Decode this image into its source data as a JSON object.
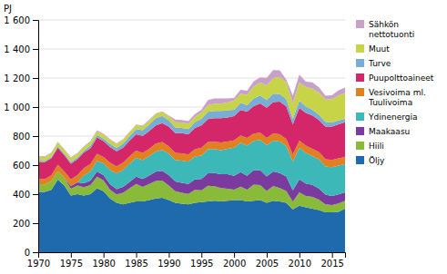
{
  "chart_data": {
    "type": "area",
    "stacked": true,
    "y_label": "PJ",
    "x": [
      1970,
      1971,
      1972,
      1973,
      1974,
      1975,
      1976,
      1977,
      1978,
      1979,
      1980,
      1981,
      1982,
      1983,
      1984,
      1985,
      1986,
      1987,
      1988,
      1989,
      1990,
      1991,
      1992,
      1993,
      1994,
      1995,
      1996,
      1997,
      1998,
      1999,
      2000,
      2001,
      2002,
      2003,
      2004,
      2005,
      2006,
      2007,
      2008,
      2009,
      2010,
      2011,
      2012,
      2013,
      2014,
      2015,
      2016,
      2017
    ],
    "series": [
      {
        "name": "Öljy",
        "color": "#1f6aad",
        "values": [
          415,
          415,
          430,
          500,
          460,
          390,
          400,
          390,
          400,
          440,
          420,
          370,
          340,
          330,
          340,
          350,
          350,
          360,
          370,
          375,
          360,
          340,
          335,
          330,
          340,
          345,
          350,
          355,
          350,
          355,
          360,
          360,
          350,
          355,
          360,
          340,
          355,
          350,
          340,
          295,
          320,
          310,
          300,
          290,
          275,
          275,
          278,
          300
        ]
      },
      {
        "name": "Hiili",
        "color": "#8aba3a",
        "values": [
          55,
          52,
          60,
          58,
          52,
          48,
          60,
          58,
          62,
          80,
          75,
          62,
          58,
          80,
          100,
          120,
          100,
          110,
          120,
          118,
          100,
          80,
          75,
          72,
          90,
          82,
          108,
          100,
          92,
          82,
          72,
          92,
          82,
          110,
          102,
          82,
          102,
          92,
          82,
          54,
          92,
          77,
          82,
          72,
          54,
          50,
          58,
          54
        ]
      },
      {
        "name": "Maakaasu",
        "color": "#7b3b9e",
        "values": [
          0,
          0,
          0,
          0,
          0,
          18,
          22,
          27,
          32,
          36,
          36,
          36,
          36,
          40,
          45,
          50,
          54,
          58,
          64,
          68,
          72,
          67,
          68,
          68,
          72,
          77,
          86,
          90,
          95,
          100,
          95,
          100,
          95,
          100,
          104,
          100,
          100,
          104,
          100,
          77,
          90,
          86,
          82,
          77,
          68,
          63,
          63,
          59
        ]
      },
      {
        "name": "Ydinenergia",
        "color": "#3cb8b8",
        "values": [
          0,
          0,
          0,
          0,
          0,
          0,
          0,
          54,
          64,
          72,
          81,
          99,
          108,
          117,
          126,
          130,
          130,
          135,
          140,
          144,
          148,
          148,
          153,
          153,
          157,
          162,
          166,
          166,
          166,
          175,
          194,
          202,
          207,
          202,
          207,
          216,
          211,
          216,
          207,
          198,
          216,
          211,
          198,
          202,
          194,
          198,
          198,
          194
        ]
      },
      {
        "name": "Vesivoima ml.\nTuulivoima",
        "color": "#e08020",
        "values": [
          36,
          36,
          40,
          45,
          45,
          45,
          50,
          50,
          50,
          50,
          45,
          50,
          50,
          50,
          50,
          50,
          50,
          50,
          54,
          54,
          50,
          50,
          50,
          50,
          50,
          54,
          50,
          50,
          54,
          50,
          50,
          50,
          54,
          50,
          50,
          50,
          50,
          50,
          50,
          50,
          50,
          50,
          50,
          50,
          50,
          50,
          50,
          50
        ]
      },
      {
        "name": "Puupolttoaineet",
        "color": "#d4276a",
        "values": [
          117,
          117,
          117,
          117,
          112,
          108,
          108,
          108,
          108,
          112,
          108,
          108,
          104,
          104,
          108,
          112,
          117,
          122,
          126,
          130,
          135,
          135,
          140,
          140,
          148,
          153,
          157,
          162,
          166,
          166,
          166,
          175,
          180,
          189,
          202,
          207,
          216,
          225,
          225,
          207,
          225,
          225,
          230,
          220,
          225,
          230,
          234,
          239
        ]
      },
      {
        "name": "Turve",
        "color": "#7aadd4",
        "values": [
          9,
          9,
          9,
          9,
          9,
          13,
          13,
          13,
          18,
          18,
          18,
          22,
          22,
          27,
          31,
          36,
          40,
          45,
          50,
          50,
          45,
          40,
          36,
          36,
          40,
          45,
          50,
          50,
          50,
          50,
          45,
          50,
          45,
          54,
          54,
          54,
          58,
          54,
          50,
          36,
          50,
          45,
          40,
          36,
          32,
          27,
          27,
          23
        ]
      },
      {
        "name": "Muut",
        "color": "#c8d448",
        "values": [
          27,
          27,
          27,
          27,
          27,
          27,
          27,
          27,
          27,
          27,
          27,
          27,
          27,
          27,
          27,
          27,
          27,
          27,
          27,
          27,
          27,
          36,
          36,
          36,
          36,
          45,
          45,
          50,
          50,
          54,
          63,
          63,
          72,
          81,
          90,
          99,
          108,
          117,
          117,
          108,
          126,
          135,
          144,
          153,
          153,
          162,
          171,
          180
        ]
      },
      {
        "name": "Sähkön\nnettotuonti",
        "color": "#c8a0c8",
        "values": [
          5,
          5,
          5,
          5,
          5,
          5,
          5,
          5,
          5,
          5,
          5,
          5,
          5,
          5,
          5,
          5,
          5,
          5,
          5,
          5,
          5,
          18,
          18,
          18,
          18,
          18,
          36,
          36,
          36,
          27,
          18,
          27,
          27,
          36,
          36,
          54,
          54,
          45,
          18,
          54,
          54,
          36,
          45,
          36,
          27,
          27,
          36,
          36
        ]
      }
    ],
    "xlim": [
      1970,
      2017
    ],
    "xticks": [
      1970,
      1975,
      1980,
      1985,
      1990,
      1995,
      2000,
      2005,
      2010,
      2015
    ],
    "ylim": [
      0,
      1600
    ],
    "yticks": [
      0,
      200,
      400,
      600,
      800,
      {
        "value": 1000,
        "label": "1 000"
      },
      {
        "value": 1200,
        "label": "1 200"
      },
      {
        "value": 1400,
        "label": "1 400"
      },
      {
        "value": 1600,
        "label": "1 600"
      }
    ],
    "grid": true,
    "legend": "right"
  }
}
